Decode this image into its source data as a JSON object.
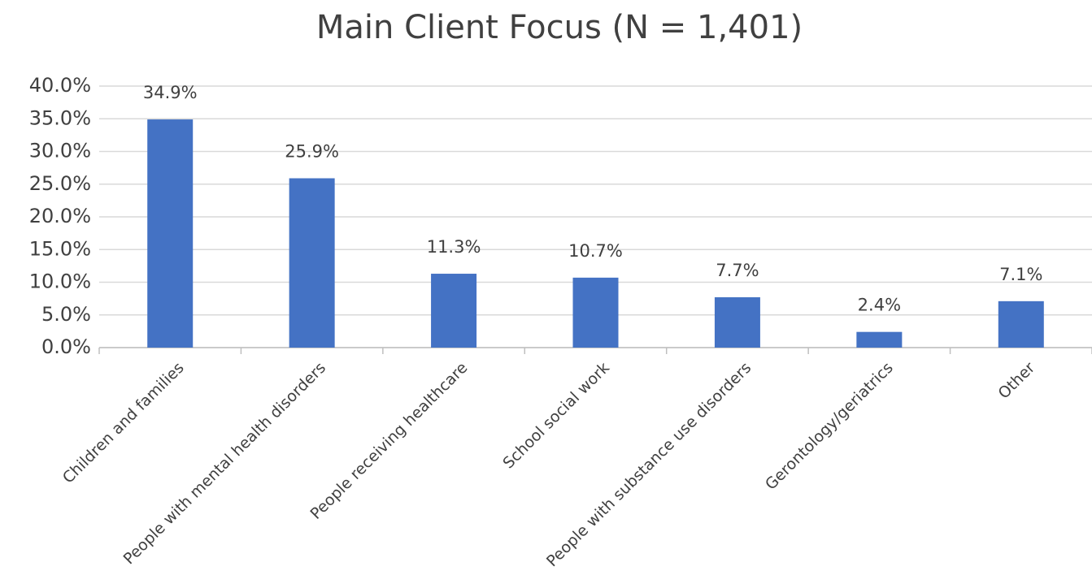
{
  "chart_data": {
    "type": "bar",
    "title": "Main Client Focus (N = 1,401)",
    "categories": [
      "Children and families",
      "People with mental health disorders",
      "People receiving healthcare",
      "School social work",
      "People with substance use disorders",
      "Gerontology/geriatrics",
      "Other"
    ],
    "values": [
      34.9,
      25.9,
      11.3,
      10.7,
      7.7,
      2.4,
      7.1
    ],
    "value_labels": [
      "34.9%",
      "25.9%",
      "11.3%",
      "10.7%",
      "7.7%",
      "2.4%",
      "7.1%"
    ],
    "color": "#4472c4",
    "ylim": [
      0,
      40
    ],
    "yticks": [
      {
        "value": 0,
        "label": "0.0%"
      },
      {
        "value": 5,
        "label": "5.0%"
      },
      {
        "value": 10,
        "label": "10.0%"
      },
      {
        "value": 15,
        "label": "15.0%"
      },
      {
        "value": 20,
        "label": "20.0%"
      },
      {
        "value": 25,
        "label": "25.0%"
      },
      {
        "value": 30,
        "label": "30.0%"
      },
      {
        "value": 35,
        "label": "35.0%"
      },
      {
        "value": 40,
        "label": "40.0%"
      }
    ],
    "grid": true
  }
}
